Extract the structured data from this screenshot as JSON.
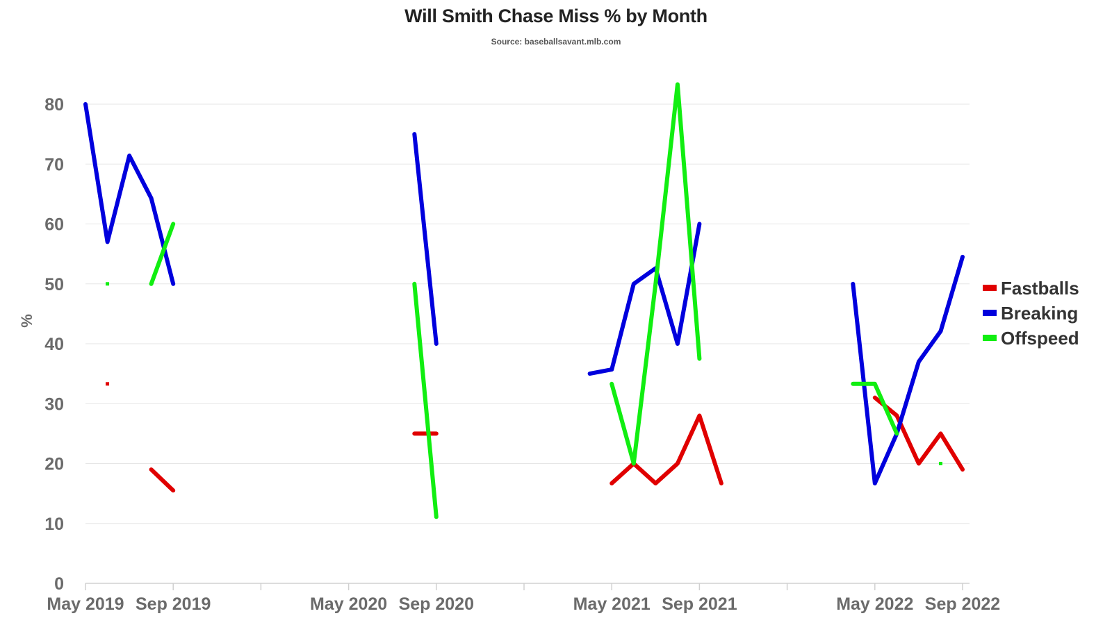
{
  "chart_data": {
    "type": "line",
    "title": "Will Smith Chase Miss % by Month",
    "subtitle": "Source: baseballsavant.mlb.com",
    "xlabel": "",
    "ylabel": "%",
    "ylim": [
      0,
      80
    ],
    "yticks": [
      0,
      10,
      20,
      30,
      40,
      50,
      60,
      70,
      80
    ],
    "xticks": [
      "May 2019",
      "Sep 2019",
      "May 2020",
      "Sep 2020",
      "May 2021",
      "Sep 2021",
      "May 2022",
      "Sep 2022"
    ],
    "grid": true,
    "legend_position": "right",
    "x_categories": [
      "2019-05",
      "2019-06",
      "2019-07",
      "2019-08",
      "2019-09",
      "2020-07",
      "2020-08",
      "2020-09",
      "2021-04",
      "2021-05",
      "2021-06",
      "2021-07",
      "2021-08",
      "2021-09",
      "2021-10",
      "2022-04",
      "2022-05",
      "2022-06",
      "2022-07",
      "2022-08",
      "2022-09",
      "2022-10"
    ],
    "series": [
      {
        "name": "Fastballs",
        "color": "#e00000",
        "points": [
          [
            "2019-06",
            33.3
          ],
          [
            "2019-08",
            19
          ],
          [
            "2019-09",
            15.5
          ],
          [
            "2020-08",
            25
          ],
          [
            "2020-09",
            25
          ],
          [
            "2021-05",
            16.7
          ],
          [
            "2021-06",
            20
          ],
          [
            "2021-07",
            16.7
          ],
          [
            "2021-08",
            20
          ],
          [
            "2021-09",
            28
          ],
          [
            "2021-10",
            16.7
          ],
          [
            "2022-05",
            31
          ],
          [
            "2022-06",
            28
          ],
          [
            "2022-07",
            20
          ],
          [
            "2022-08",
            25
          ],
          [
            "2022-09",
            19
          ]
        ]
      },
      {
        "name": "Breaking",
        "color": "#0000dd",
        "points": [
          [
            "2019-05",
            80
          ],
          [
            "2019-06",
            57
          ],
          [
            "2019-07",
            71.4
          ],
          [
            "2019-08",
            64.3
          ],
          [
            "2019-09",
            50
          ],
          [
            "2020-08",
            75
          ],
          [
            "2020-09",
            40
          ],
          [
            "2021-04",
            35
          ],
          [
            "2021-05",
            35.7
          ],
          [
            "2021-06",
            50
          ],
          [
            "2021-07",
            52.6
          ],
          [
            "2021-08",
            40
          ],
          [
            "2021-09",
            60
          ],
          [
            "2022-04",
            50
          ],
          [
            "2022-05",
            16.7
          ],
          [
            "2022-06",
            25
          ],
          [
            "2022-07",
            37
          ],
          [
            "2022-08",
            42.1
          ],
          [
            "2022-09",
            54.5
          ]
        ]
      },
      {
        "name": "Offspeed",
        "color": "#11ee11",
        "points": [
          [
            "2019-06",
            50
          ],
          [
            "2019-08",
            50
          ],
          [
            "2019-09",
            60
          ],
          [
            "2020-08",
            50
          ],
          [
            "2020-09",
            11.1
          ],
          [
            "2021-05",
            33.3
          ],
          [
            "2021-06",
            20
          ],
          [
            "2021-07",
            50
          ],
          [
            "2021-08",
            83.3
          ],
          [
            "2021-09",
            37.5
          ],
          [
            "2022-04",
            33.3
          ],
          [
            "2022-05",
            33.3
          ],
          [
            "2022-06",
            25
          ],
          [
            "2022-08",
            20
          ]
        ]
      }
    ]
  }
}
